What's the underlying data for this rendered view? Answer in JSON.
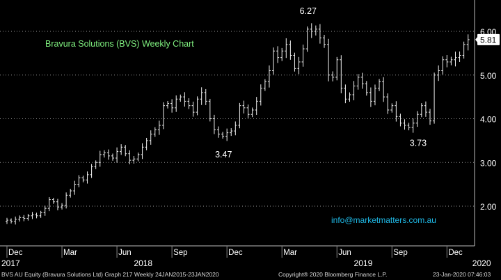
{
  "chart_data": {
    "type": "ohlc",
    "title": "Bravura Solutions (BVS) Weekly Chart",
    "ylim": [
      1.2,
      6.6
    ],
    "y_ticks": [
      2.0,
      3.0,
      4.0,
      5.0,
      6.0
    ],
    "y_tick_labels": [
      "2.00",
      "3.00",
      "4.00",
      "5.00",
      "6.00"
    ],
    "last_price": 5.81,
    "last_price_label": "5.81",
    "x_ticks": [
      {
        "label": "Dec",
        "week": 0
      },
      {
        "label": "Mar",
        "week": 13
      },
      {
        "label": "Jun",
        "week": 26
      },
      {
        "label": "Sep",
        "week": 39
      },
      {
        "label": "Dec",
        "week": 52
      },
      {
        "label": "Mar",
        "week": 65
      },
      {
        "label": "Jun",
        "week": 78
      },
      {
        "label": "Sep",
        "week": 91
      },
      {
        "label": "Dec",
        "week": 104
      }
    ],
    "year_labels": [
      {
        "label": "2017",
        "week": 0
      },
      {
        "label": "2018",
        "week": 30
      },
      {
        "label": "2019",
        "week": 82
      },
      {
        "label": "2020",
        "week": 110
      }
    ],
    "annotations": [
      {
        "text": "6.27",
        "week": 71,
        "value": 6.27
      },
      {
        "text": "3.47",
        "week": 51,
        "value": 3.47
      },
      {
        "text": "3.73",
        "week": 97,
        "value": 3.73
      }
    ],
    "weekly_close": [
      1.68,
      1.65,
      1.7,
      1.74,
      1.72,
      1.78,
      1.8,
      1.78,
      1.85,
      1.95,
      2.15,
      2.1,
      1.98,
      2.02,
      2.25,
      2.35,
      2.5,
      2.65,
      2.6,
      2.72,
      2.9,
      3.0,
      3.18,
      3.22,
      3.15,
      3.1,
      3.25,
      3.35,
      3.2,
      3.05,
      3.08,
      3.18,
      3.35,
      3.5,
      3.65,
      3.75,
      3.85,
      4.3,
      4.35,
      4.25,
      4.45,
      4.5,
      4.4,
      4.3,
      4.15,
      4.45,
      4.6,
      4.4,
      4.0,
      3.75,
      3.65,
      3.6,
      3.68,
      3.72,
      3.85,
      4.3,
      4.25,
      4.1,
      4.2,
      4.4,
      4.7,
      4.85,
      5.1,
      5.55,
      5.4,
      5.55,
      5.7,
      5.45,
      5.15,
      5.3,
      5.6,
      6.05,
      6.0,
      6.05,
      5.85,
      5.7,
      5.0,
      4.95,
      5.35,
      4.7,
      4.45,
      4.55,
      4.75,
      4.95,
      4.8,
      4.6,
      4.4,
      4.7,
      4.85,
      4.5,
      4.2,
      4.3,
      4.05,
      3.9,
      3.85,
      3.8,
      3.9,
      4.1,
      4.3,
      4.15,
      3.95,
      5.0,
      5.1,
      5.35,
      5.3,
      5.35,
      5.4,
      5.45,
      5.7,
      5.81
    ]
  },
  "footer": {
    "left": "BVS AU Equity (Bravura Solutions Ltd) Graph 217  Weekly 24JAN2015-23JAN2020",
    "center": "Copyright® 2020 Bloomberg Finance L.P.",
    "right": "23-Jan-2020 07:46:03"
  },
  "watermark": "info@marketmatters.com.au",
  "colors": {
    "background": "#000000",
    "bars": "#f2f2f2",
    "grid": "#9a9a9a",
    "axis_text": "#ffffff",
    "title": "#7ff07f",
    "watermark": "#1fb9e6",
    "last_price_box": "#ffffff"
  }
}
